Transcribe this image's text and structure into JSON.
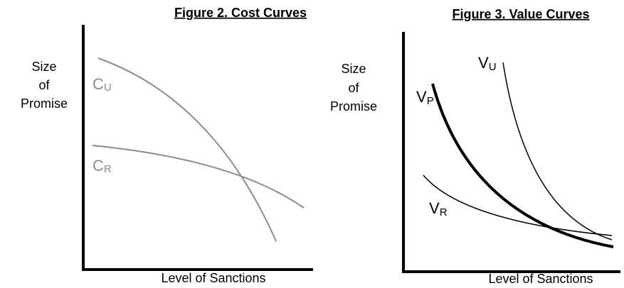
{
  "figures": [
    {
      "title": "Figure 2. Cost Curves",
      "y_label": [
        "Size",
        "of",
        "Promise"
      ],
      "x_label": "Level of Sanctions",
      "curves": [
        {
          "label": "C",
          "sub": "U"
        },
        {
          "label": "C",
          "sub": "R"
        }
      ]
    },
    {
      "title": "Figure 3. Value Curves",
      "y_label": [
        "Size",
        "of",
        "Promise"
      ],
      "x_label": "Level of Sanctions",
      "curves": [
        {
          "label": "V",
          "sub": "U"
        },
        {
          "label": "V",
          "sub": "P"
        },
        {
          "label": "V",
          "sub": "R"
        }
      ]
    }
  ]
}
